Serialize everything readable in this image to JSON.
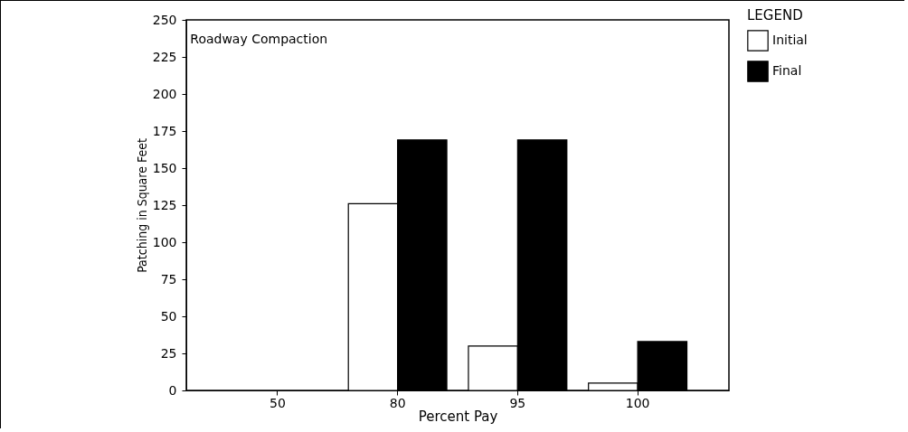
{
  "chart_data": {
    "type": "bar",
    "title": "Roadway Compaction",
    "xlabel": "Percent Pay",
    "ylabel": "Patching in Square Feet",
    "legend_title": "LEGEND",
    "legend": "top right",
    "categories": [
      "50",
      "80",
      "95",
      "100"
    ],
    "series": [
      {
        "name": "Initial",
        "color": "#ffffff",
        "values": [
          null,
          126,
          30,
          5
        ]
      },
      {
        "name": "Final",
        "color": "#000000",
        "values": [
          null,
          169,
          169,
          33
        ]
      }
    ],
    "ylim": [
      0,
      250
    ],
    "yticks": [
      0,
      25,
      50,
      75,
      100,
      125,
      150,
      175,
      200,
      225,
      250
    ]
  }
}
